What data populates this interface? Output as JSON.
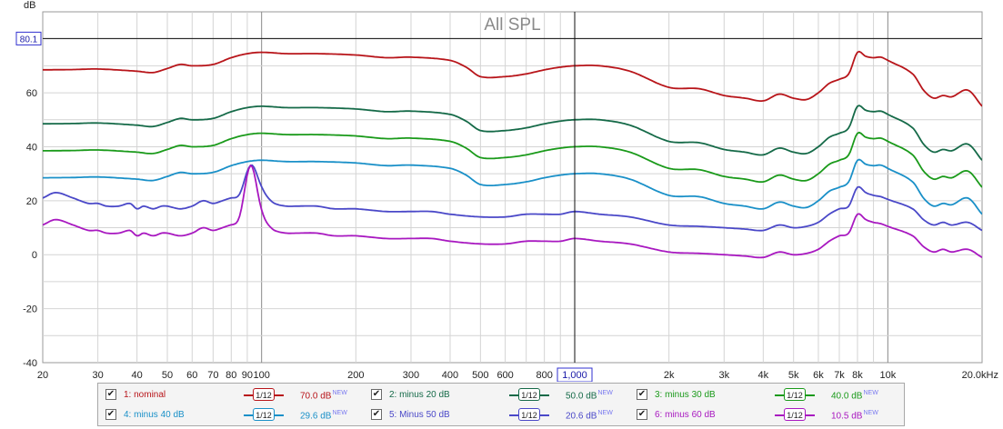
{
  "chart_data": {
    "type": "line",
    "title": "All SPL",
    "ylabel": "dB",
    "x_scale": "log",
    "xlim": [
      20,
      20000
    ],
    "ylim": [
      -40,
      90
    ],
    "x_ticks": [
      {
        "v": 20,
        "label": "20"
      },
      {
        "v": 30,
        "label": "30"
      },
      {
        "v": 40,
        "label": "40"
      },
      {
        "v": 50,
        "label": "50"
      },
      {
        "v": 60,
        "label": "60"
      },
      {
        "v": 70,
        "label": "70"
      },
      {
        "v": 80,
        "label": "80"
      },
      {
        "v": 90,
        "label": "90"
      },
      {
        "v": 100,
        "label": "100"
      },
      {
        "v": 200,
        "label": "200"
      },
      {
        "v": 300,
        "label": "300"
      },
      {
        "v": 400,
        "label": "400"
      },
      {
        "v": 500,
        "label": "500"
      },
      {
        "v": 600,
        "label": "600"
      },
      {
        "v": 800,
        "label": "800"
      },
      {
        "v": 1000,
        "label": "1,000"
      },
      {
        "v": 2000,
        "label": "2k"
      },
      {
        "v": 3000,
        "label": "3k"
      },
      {
        "v": 4000,
        "label": "4k"
      },
      {
        "v": 5000,
        "label": "5k"
      },
      {
        "v": 6000,
        "label": "6k"
      },
      {
        "v": 7000,
        "label": "7k"
      },
      {
        "v": 8000,
        "label": "8k"
      },
      {
        "v": 10000,
        "label": "10k"
      },
      {
        "v": 20000,
        "label": "20.0kHz"
      }
    ],
    "y_ticks": [
      {
        "v": -40,
        "label": "-40"
      },
      {
        "v": -20,
        "label": "-20"
      },
      {
        "v": 0,
        "label": "0"
      },
      {
        "v": 20,
        "label": "20"
      },
      {
        "v": 40,
        "label": "40"
      },
      {
        "v": 60,
        "label": "60"
      }
    ],
    "cursor": {
      "x": 1000,
      "x_label": "1,000",
      "y": 80.1,
      "y_label": "80.1"
    },
    "grid": true,
    "base_curve": {
      "x": [
        20,
        25,
        30,
        40,
        45,
        50,
        55,
        60,
        70,
        80,
        90,
        100,
        120,
        150,
        200,
        250,
        300,
        400,
        450,
        500,
        600,
        700,
        800,
        900,
        1000,
        1200,
        1500,
        2000,
        2500,
        3000,
        3500,
        4000,
        4500,
        5000,
        5500,
        6000,
        6500,
        7000,
        7500,
        8000,
        8500,
        9000,
        9500,
        10000,
        12000,
        13000,
        14000,
        15000,
        16000,
        18000,
        20000
      ],
      "y": [
        68.5,
        68.6,
        68.8,
        68,
        67.5,
        69,
        70.5,
        70,
        70.5,
        73,
        74.5,
        75,
        74.5,
        74.5,
        74,
        73,
        73.2,
        72,
        69.5,
        66,
        66,
        67,
        68.5,
        69.5,
        70,
        70,
        68,
        62,
        61.5,
        59,
        58,
        57,
        59.5,
        58,
        57.5,
        60,
        63.5,
        65,
        67,
        75,
        73.5,
        73,
        73.2,
        72,
        67,
        61,
        58,
        59,
        58.5,
        61,
        55
      ]
    },
    "low_curve": {
      "x": [
        20,
        22,
        25,
        28,
        30,
        32,
        35,
        38,
        40,
        42,
        45,
        48,
        50,
        55,
        60,
        65,
        70,
        75,
        80,
        85,
        90,
        95,
        100,
        105,
        110,
        120,
        130,
        150,
        170,
        200,
        250,
        300,
        350,
        400,
        500,
        600,
        700,
        800,
        900,
        1000,
        1200,
        1500,
        2000,
        2500,
        3000,
        3500,
        4000,
        4500,
        5000,
        5500,
        6000,
        6500,
        7000,
        7500,
        8000,
        8500,
        9000,
        9500,
        10000,
        12000,
        13000,
        14000,
        15000,
        16000,
        18000,
        20000
      ],
      "y": [
        21,
        23,
        21,
        19,
        19,
        18,
        18,
        19,
        17,
        18,
        17,
        18,
        18,
        17,
        18,
        20,
        19,
        20,
        21,
        21,
        24,
        26,
        24,
        21,
        19,
        18,
        18,
        18,
        17,
        17,
        16,
        16,
        16,
        15,
        14,
        14,
        15,
        15,
        15,
        16,
        15,
        14,
        11,
        10.5,
        10,
        9.5,
        9,
        11,
        10,
        10.5,
        12,
        15,
        17,
        18,
        25,
        23,
        22,
        21.5,
        20.5,
        17,
        13,
        11,
        12,
        11,
        12,
        9
      ]
    },
    "peak": {
      "x": 92,
      "y": 33
    },
    "series": [
      {
        "name": "1: nominal",
        "color": "#b8151a",
        "offset": 0,
        "mode": "base"
      },
      {
        "name": "2: minus 20 dB",
        "color": "#156a48",
        "offset": -20,
        "mode": "base"
      },
      {
        "name": "3: minus 30 dB",
        "color": "#1a9a1a",
        "offset": -30,
        "mode": "base"
      },
      {
        "name": "4: minus 40 dB",
        "color": "#1a90c8",
        "offset": -40,
        "mode": "base"
      },
      {
        "name": "5: Minus 50 dB",
        "color": "#4a48c8",
        "offset": 0,
        "mode": "low"
      },
      {
        "name": "6: minus 60 dB",
        "color": "#a818c0",
        "offset": -10,
        "mode": "low"
      }
    ]
  },
  "legend": [
    {
      "name": "1: nominal",
      "smoothing": "1/12",
      "value": "70.0 dB",
      "badge": "NEW",
      "color": "#b8151a"
    },
    {
      "name": "2: minus 20 dB",
      "smoothing": "1/12",
      "value": "50.0 dB",
      "badge": "NEW",
      "color": "#156a48"
    },
    {
      "name": "3: minus 30 dB",
      "smoothing": "1/12",
      "value": "40.0 dB",
      "badge": "NEW",
      "color": "#1a9a1a"
    },
    {
      "name": "4: minus 40 dB",
      "smoothing": "1/12",
      "value": "29.6 dB",
      "badge": "NEW",
      "color": "#1a90c8"
    },
    {
      "name": "5: Minus 50 dB",
      "smoothing": "1/12",
      "value": "20.6 dB",
      "badge": "NEW",
      "color": "#4a48c8"
    },
    {
      "name": "6: minus 60 dB",
      "smoothing": "1/12",
      "value": "10.5 dB",
      "badge": "NEW",
      "color": "#a818c0"
    }
  ]
}
